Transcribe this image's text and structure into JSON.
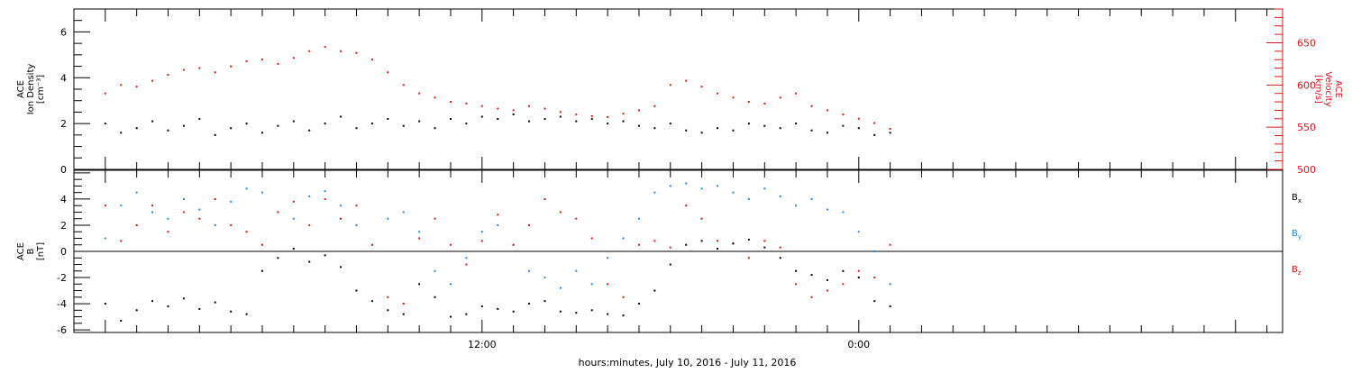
{
  "chart_data": [
    {
      "panel": "top",
      "type": "scatter",
      "xlabel": "hours:minutes, July 10, 2016 - July 11, 2016",
      "x_tick_labels": [
        {
          "t": 12,
          "label": "12:00"
        },
        {
          "t": 24,
          "label": "0:00"
        }
      ],
      "left_axis": {
        "label_lines": [
          "ACE",
          "Ion Density",
          "[cm⁻³]"
        ],
        "ylim": [
          0,
          7
        ],
        "ticks": [
          0,
          2,
          4,
          6
        ],
        "color": "#000000"
      },
      "right_axis": {
        "label_lines": [
          "ACE",
          "Velocity",
          "[km/s]"
        ],
        "ylim": [
          500,
          690
        ],
        "ticks": [
          500,
          550,
          600,
          650
        ],
        "color": "#e0151b"
      },
      "series": [
        {
          "color": "#000000",
          "axis": "left",
          "x": [
            0.0,
            0.5,
            1.0,
            1.5,
            2.0,
            2.5,
            3.0,
            3.5,
            4.0,
            4.5,
            5.0,
            5.5,
            6.0,
            6.5,
            7.0,
            7.5,
            8.0,
            8.5,
            9.0,
            9.5,
            10.0,
            10.5,
            11.0,
            11.5,
            12.0,
            12.5,
            13.0,
            13.5,
            14.0,
            14.5,
            15.0,
            15.5,
            16.0,
            16.5,
            17.0,
            17.5,
            18.0,
            18.5,
            19.0,
            19.5,
            20.0,
            20.5,
            21.0,
            21.5,
            22.0,
            22.5,
            23.0,
            23.5,
            24.0,
            24.5,
            25.0
          ],
          "y": [
            2.0,
            1.6,
            1.8,
            2.1,
            1.7,
            1.9,
            2.2,
            1.5,
            1.8,
            2.0,
            1.6,
            1.9,
            2.1,
            1.7,
            2.0,
            2.3,
            1.8,
            2.0,
            2.2,
            1.9,
            2.1,
            1.8,
            2.2,
            2.0,
            2.3,
            2.2,
            2.4,
            2.1,
            2.2,
            2.3,
            2.1,
            2.2,
            2.0,
            2.1,
            1.9,
            1.8,
            2.0,
            1.7,
            1.6,
            1.8,
            1.7,
            2.0,
            1.9,
            1.8,
            2.0,
            1.7,
            1.6,
            1.9,
            1.8,
            1.5,
            1.6
          ]
        },
        {
          "color": "#e0151b",
          "axis": "right",
          "x": [
            0.0,
            0.5,
            1.0,
            1.5,
            2.0,
            2.5,
            3.0,
            3.5,
            4.0,
            4.5,
            5.0,
            5.5,
            6.0,
            6.5,
            7.0,
            7.5,
            8.0,
            8.5,
            9.0,
            9.5,
            10.0,
            10.5,
            11.0,
            11.5,
            12.0,
            12.5,
            13.0,
            13.5,
            14.0,
            14.5,
            15.0,
            15.5,
            16.0,
            16.5,
            17.0,
            17.5,
            18.0,
            18.5,
            19.0,
            19.5,
            20.0,
            20.5,
            21.0,
            21.5,
            22.0,
            22.5,
            23.0,
            23.5,
            24.0,
            24.5,
            25.0
          ],
          "y": [
            590,
            600,
            598,
            605,
            612,
            618,
            620,
            615,
            622,
            628,
            630,
            625,
            632,
            640,
            645,
            640,
            638,
            630,
            615,
            600,
            590,
            585,
            580,
            578,
            575,
            572,
            570,
            575,
            572,
            568,
            565,
            563,
            562,
            566,
            570,
            575,
            600,
            605,
            598,
            590,
            585,
            580,
            578,
            585,
            590,
            575,
            570,
            565,
            560,
            555,
            548
          ]
        }
      ]
    },
    {
      "panel": "bottom",
      "type": "scatter",
      "left_axis": {
        "label_lines": [
          "ACE",
          "B",
          "[nT]"
        ],
        "ylim": [
          -6.2,
          6.2
        ],
        "ticks": [
          -6,
          -4,
          -2,
          0,
          2,
          4
        ],
        "color": "#000000"
      },
      "legend_position": "right",
      "series": [
        {
          "name": "Bx",
          "color": "#000000",
          "x": [
            0.0,
            0.5,
            1.0,
            1.5,
            2.0,
            2.5,
            3.0,
            3.5,
            4.0,
            4.5,
            5.0,
            5.5,
            6.0,
            6.5,
            7.0,
            7.5,
            8.0,
            8.5,
            9.0,
            9.5,
            10.0,
            10.5,
            11.0,
            11.5,
            12.0,
            12.5,
            13.0,
            13.5,
            14.0,
            14.5,
            15.0,
            15.5,
            16.0,
            16.5,
            17.0,
            17.5,
            18.0,
            18.5,
            19.0,
            19.5,
            20.0,
            20.5,
            21.0,
            21.5,
            22.0,
            22.5,
            23.0,
            23.5,
            24.0,
            24.5,
            25.0
          ],
          "y": [
            -4.0,
            -5.3,
            -4.5,
            -3.8,
            -4.2,
            -3.6,
            -4.4,
            -3.9,
            -4.6,
            -4.8,
            -1.5,
            -0.5,
            0.2,
            -0.8,
            -0.3,
            -1.2,
            -3.0,
            -3.8,
            -4.5,
            -4.8,
            -2.5,
            -3.5,
            -5.0,
            -4.8,
            -4.2,
            -4.4,
            -4.6,
            -4.0,
            -3.8,
            -4.6,
            -4.7,
            -4.5,
            -4.8,
            -4.9,
            -4.0,
            -3.0,
            -1.0,
            0.5,
            0.8,
            0.2,
            0.6,
            0.9,
            0.3,
            -0.5,
            -1.5,
            -1.8,
            -2.2,
            -1.5,
            -2.0,
            -3.8,
            -4.2
          ]
        },
        {
          "name": "By",
          "color": "#1f8ae0",
          "x": [
            0.0,
            0.5,
            1.0,
            1.5,
            2.0,
            2.5,
            3.0,
            3.5,
            4.0,
            4.5,
            5.0,
            5.5,
            6.0,
            6.5,
            7.0,
            7.5,
            8.0,
            8.5,
            9.0,
            9.5,
            10.0,
            10.5,
            11.0,
            11.5,
            12.0,
            12.5,
            13.0,
            13.5,
            14.0,
            14.5,
            15.0,
            15.5,
            16.0,
            16.5,
            17.0,
            17.5,
            18.0,
            18.5,
            19.0,
            19.5,
            20.0,
            20.5,
            21.0,
            21.5,
            22.0,
            22.5,
            23.0,
            23.5,
            24.0,
            24.5,
            25.0
          ],
          "y": [
            1.0,
            3.5,
            4.5,
            3.0,
            2.5,
            4.0,
            3.2,
            2.0,
            3.8,
            4.8,
            4.5,
            3.0,
            2.5,
            4.2,
            4.6,
            3.5,
            2.0,
            0.5,
            2.5,
            3.0,
            1.5,
            -1.5,
            -2.5,
            -0.5,
            1.5,
            2.0,
            0.5,
            -1.5,
            -2.0,
            -2.8,
            -1.5,
            -2.5,
            -0.5,
            1.0,
            2.5,
            4.5,
            5.0,
            5.2,
            4.8,
            5.0,
            4.5,
            4.0,
            4.8,
            4.2,
            3.5,
            4.0,
            3.2,
            3.0,
            1.5,
            0.0,
            -2.5
          ]
        },
        {
          "name": "Bz",
          "color": "#e0151b",
          "x": [
            0.0,
            0.5,
            1.0,
            1.5,
            2.0,
            2.5,
            3.0,
            3.5,
            4.0,
            4.5,
            5.0,
            5.5,
            6.0,
            6.5,
            7.0,
            7.5,
            8.0,
            8.5,
            9.0,
            9.5,
            10.0,
            10.5,
            11.0,
            11.5,
            12.0,
            12.5,
            13.0,
            13.5,
            14.0,
            14.5,
            15.0,
            15.5,
            16.0,
            16.5,
            17.0,
            17.5,
            18.0,
            18.5,
            19.0,
            19.5,
            20.0,
            20.5,
            21.0,
            21.5,
            22.0,
            22.5,
            23.0,
            23.5,
            24.0,
            24.5,
            25.0
          ],
          "y": [
            3.5,
            0.8,
            2.0,
            3.5,
            1.5,
            3.0,
            2.5,
            4.0,
            2.0,
            1.5,
            0.5,
            3.0,
            3.8,
            2.0,
            4.0,
            2.5,
            3.5,
            0.5,
            -3.5,
            -4.0,
            1.0,
            2.5,
            0.5,
            -1.0,
            0.8,
            2.8,
            0.5,
            2.0,
            4.0,
            3.0,
            2.5,
            1.0,
            -2.5,
            -3.5,
            0.5,
            0.8,
            0.3,
            3.5,
            2.5,
            0.8,
            0.6,
            -0.5,
            0.8,
            0.3,
            -2.5,
            -3.5,
            -3.0,
            -2.5,
            -1.5,
            -2.0,
            0.5
          ]
        }
      ]
    }
  ]
}
